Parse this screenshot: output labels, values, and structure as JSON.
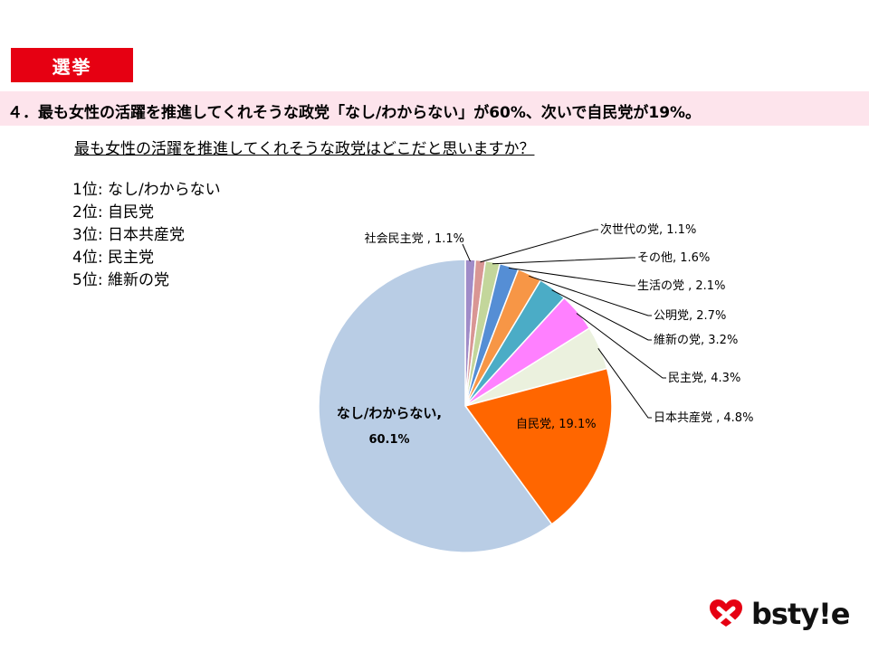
{
  "tag": "選挙",
  "headline": "４．最も女性の活躍を推進してくれそうな政党「なし/わからない」が60%、次いで自民党が19%。",
  "question": "最も女性の活躍を推進してくれそうな政党はどこだと思いますか？",
  "rankings": [
    "1位: なし/わからない",
    "2位: 自民党",
    "3位: 日本共産党",
    "4位: 民主党",
    "5位: 維新の党"
  ],
  "logo": {
    "text": "bsty!e",
    "mark_color": "#e60012"
  },
  "chart_data": {
    "type": "pie",
    "start_angle_deg": 0,
    "direction": "clockwise",
    "slices": [
      {
        "label": "社会民主党",
        "value": 1.1,
        "display": "社会民主党 , 1.1%",
        "color": "#a08cc8"
      },
      {
        "label": "次世代の党",
        "value": 1.1,
        "display": "次世代の党, 1.1%",
        "color": "#d99694"
      },
      {
        "label": "その他",
        "value": 1.6,
        "display": "その他, 1.6%",
        "color": "#c3d69b"
      },
      {
        "label": "生活の党",
        "value": 2.1,
        "display": "生活の党 , 2.1%",
        "color": "#558ed5"
      },
      {
        "label": "公明党",
        "value": 2.7,
        "display": "公明党, 2.7%",
        "color": "#f79646"
      },
      {
        "label": "維新の党",
        "value": 3.2,
        "display": "維新の党, 3.2%",
        "color": "#4bacc6"
      },
      {
        "label": "民主党",
        "value": 4.3,
        "display": "民主党, 4.3%",
        "color": "#ff80ff"
      },
      {
        "label": "日本共産党",
        "value": 4.8,
        "display": "日本共産党 , 4.8%",
        "color": "#ebf1de"
      },
      {
        "label": "自民党",
        "value": 19.1,
        "display": "自民党, 19.1%",
        "color": "#ff6600"
      },
      {
        "label": "なし/わからない",
        "value": 60.1,
        "display_name": "なし/わからない,",
        "display_value": "60.1%",
        "color": "#b9cde5"
      }
    ]
  }
}
